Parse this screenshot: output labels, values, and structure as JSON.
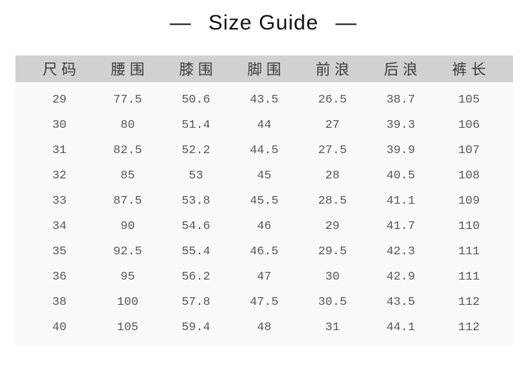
{
  "page": {
    "title": "Size Guide",
    "title_dash_left": "—",
    "title_dash_right": "—"
  },
  "table": {
    "columns": [
      "尺码",
      "腰围",
      "膝围",
      "脚围",
      "前浪",
      "后浪",
      "裤长"
    ],
    "rows": [
      [
        "29",
        "77.5",
        "50.6",
        "43.5",
        "26.5",
        "38.7",
        "105"
      ],
      [
        "30",
        "80",
        "51.4",
        "44",
        "27",
        "39.3",
        "106"
      ],
      [
        "31",
        "82.5",
        "52.2",
        "44.5",
        "27.5",
        "39.9",
        "107"
      ],
      [
        "32",
        "85",
        "53",
        "45",
        "28",
        "40.5",
        "108"
      ],
      [
        "33",
        "87.5",
        "53.8",
        "45.5",
        "28.5",
        "41.1",
        "109"
      ],
      [
        "34",
        "90",
        "54.6",
        "46",
        "29",
        "41.7",
        "110"
      ],
      [
        "35",
        "92.5",
        "55.4",
        "46.5",
        "29.5",
        "42.3",
        "111"
      ],
      [
        "36",
        "95",
        "56.2",
        "47",
        "30",
        "42.9",
        "111"
      ],
      [
        "38",
        "100",
        "57.8",
        "47.5",
        "30.5",
        "43.5",
        "112"
      ],
      [
        "40",
        "105",
        "59.4",
        "48",
        "31",
        "44.1",
        "112"
      ]
    ]
  },
  "colors": {
    "page_background": "#ffffff",
    "title_text": "#121212",
    "header_background": "#d1d1d1",
    "header_text": "#3b3b3b",
    "body_background": "#f8faf9",
    "cell_text": "#575757"
  }
}
